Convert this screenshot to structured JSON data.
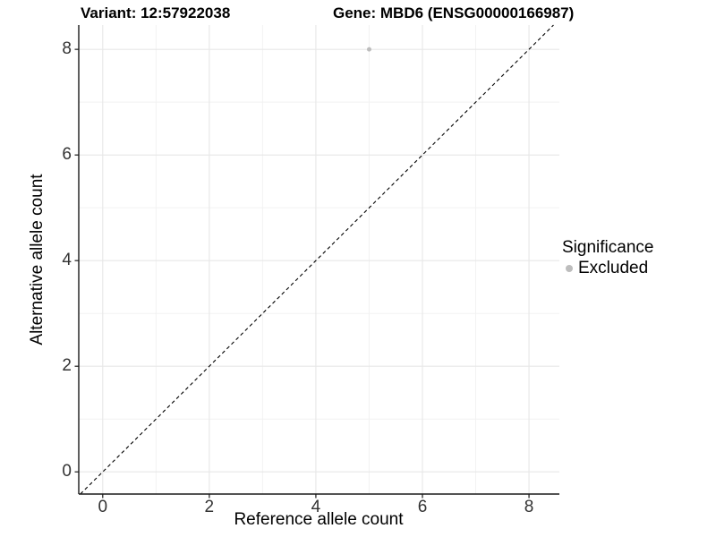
{
  "figure": {
    "title_left": "Variant: 12:57922038",
    "title_right": "Gene: MBD6 (ENSG00000166987)"
  },
  "chart_data": {
    "type": "scatter",
    "title": "Variant: 12:57922038   Gene: MBD6 (ENSG00000166987)",
    "xlabel": "Reference allele count",
    "ylabel": "Alternative allele count",
    "xlim": [
      -0.45,
      8.57
    ],
    "ylim": [
      -0.42,
      8.46
    ],
    "x_ticks": [
      0,
      2,
      4,
      6,
      8
    ],
    "y_ticks": [
      0,
      2,
      4,
      6,
      8
    ],
    "minor_x_ticks": [
      1,
      3,
      5,
      7
    ],
    "minor_y_ticks": [
      1,
      3,
      5,
      7
    ],
    "grid": true,
    "series": [
      {
        "name": "Excluded",
        "points": [
          {
            "x": 5,
            "y": 8
          }
        ],
        "color": "#bdbdbd",
        "point_radius": 2.5
      }
    ],
    "reference_line": {
      "type": "abline",
      "slope": 1,
      "intercept": 0,
      "style": "dashed",
      "color": "#000000"
    },
    "legend": {
      "title": "Significance",
      "position": "right",
      "entries": [
        {
          "label": "Excluded",
          "color": "#bdbdbd"
        }
      ]
    },
    "colors": {
      "grid_major": "#e7e7e7",
      "grid_minor": "#f2f2f2",
      "axis": "#1a1a1a",
      "tick_label": "#333333",
      "background": "#ffffff"
    }
  }
}
